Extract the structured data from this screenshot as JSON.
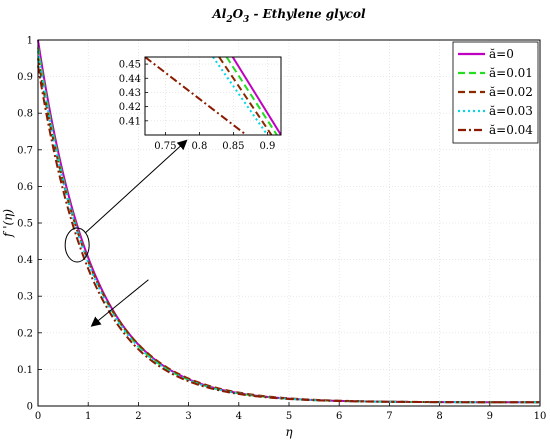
{
  "chart_data": {
    "type": "line",
    "title": {
      "p1": "Al",
      "s1": "2",
      "p2": "O",
      "s2": "3",
      "p3": " - Ethylene glycol"
    },
    "xlabel": "η",
    "ylabel": "f '(η)",
    "xlim": [
      0,
      10
    ],
    "ylim": [
      0,
      1
    ],
    "xticks": [
      "0",
      "1",
      "2",
      "3",
      "4",
      "5",
      "6",
      "7",
      "8",
      "9",
      "10"
    ],
    "yticks": [
      "0",
      "0.1",
      "0.2",
      "0.3",
      "0.4",
      "0.5",
      "0.6",
      "0.7",
      "0.8",
      "0.9",
      "1"
    ],
    "grid": true,
    "legend_position": "top-right",
    "series": [
      {
        "name": "ă=0",
        "color": "#c000c0",
        "dash": "solid",
        "start": 1.0,
        "decay": 0.918,
        "floor": 0.01
      },
      {
        "name": "ă=0.01",
        "color": "#22dd22",
        "dash": "dash",
        "start": 0.98,
        "decay": 0.92,
        "floor": 0.01
      },
      {
        "name": "ă=0.02",
        "color": "#8b2a00",
        "dash": "dash",
        "start": 0.95,
        "decay": 0.89,
        "floor": 0.01
      },
      {
        "name": "ă=0.03",
        "color": "#00d8e8",
        "dash": "dot",
        "start": 0.97,
        "decay": 0.922,
        "floor": 0.01
      },
      {
        "name": "ă=0.04",
        "color": "#8b1a00",
        "dash": "dashdot",
        "start": 0.93,
        "decay": 0.924,
        "floor": 0.01
      }
    ],
    "inset": {
      "xlim": [
        0.72,
        0.92
      ],
      "ylim": [
        0.4,
        0.455
      ],
      "xticks": [
        "0.75",
        "0.8",
        "0.85",
        "0.9"
      ],
      "yticks": [
        "0.41",
        "0.42",
        "0.43",
        "0.44",
        "0.45"
      ],
      "lines": [
        {
          "x": [
            0.849,
            0.92
          ],
          "y": [
            0.455,
            0.4
          ]
        },
        {
          "x": [
            0.84,
            0.914
          ],
          "y": [
            0.455,
            0.4
          ]
        },
        {
          "x": [
            0.829,
            0.906
          ],
          "y": [
            0.455,
            0.4
          ]
        },
        {
          "x": [
            0.82,
            0.9
          ],
          "y": [
            0.455,
            0.4
          ]
        },
        {
          "x": [
            0.72,
            0.869
          ],
          "y": [
            0.455,
            0.4
          ]
        }
      ]
    }
  }
}
